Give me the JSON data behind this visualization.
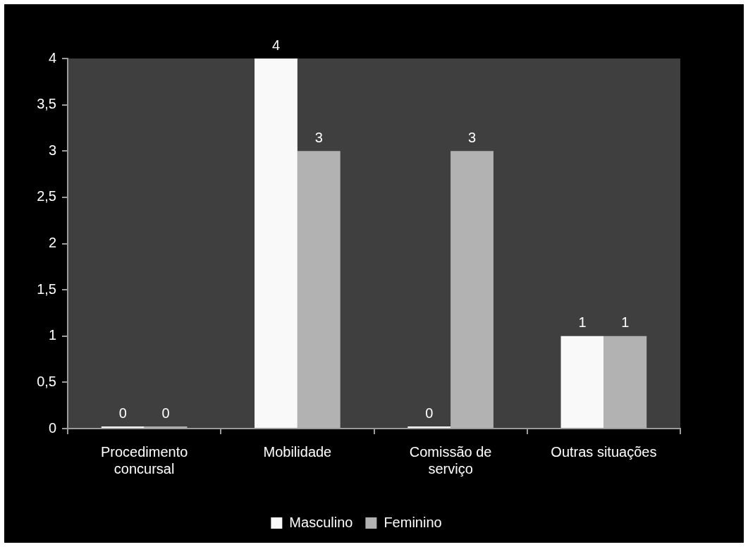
{
  "chart_data": {
    "type": "bar",
    "categories": [
      "Procedimento concursal",
      "Mobilidade",
      "Comissão de serviço",
      "Outras situações"
    ],
    "series": [
      {
        "name": "Masculino",
        "color": "#f9f9f9",
        "values": [
          0,
          4,
          0,
          1
        ]
      },
      {
        "name": "Feminino",
        "color": "#b2b2b2",
        "values": [
          0,
          3,
          3,
          1
        ]
      }
    ],
    "ylim": [
      0,
      4
    ],
    "yticks": [
      0,
      {
        "value": 0.5,
        "label": "0,5"
      },
      1,
      {
        "value": 1.5,
        "label": "1,5"
      },
      2,
      {
        "value": 2.5,
        "label": "2,5"
      },
      3,
      {
        "value": 3.5,
        "label": "3,5"
      },
      4
    ],
    "grid": false,
    "legend": "bottom",
    "data_labels": true
  }
}
